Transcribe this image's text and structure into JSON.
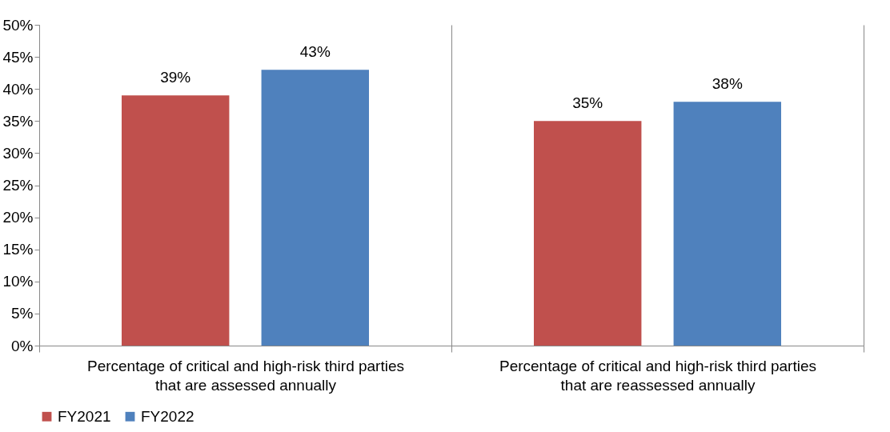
{
  "chart_data": {
    "type": "bar",
    "categories": [
      "Percentage of critical and high-risk third parties that are assessed annually",
      "Percentage of critical and high-risk third parties that are reassessed annually"
    ],
    "series": [
      {
        "name": "FY2021",
        "color": "#c0504d",
        "values": [
          39,
          35
        ],
        "value_labels": [
          "39%",
          "35%"
        ]
      },
      {
        "name": "FY2022",
        "color": "#4f81bd",
        "values": [
          43,
          38
        ],
        "value_labels": [
          "43%",
          "38%"
        ]
      }
    ],
    "ylim": [
      0,
      50
    ],
    "yticks": [
      {
        "value": 0,
        "label": "0%"
      },
      {
        "value": 5,
        "label": "5%"
      },
      {
        "value": 10,
        "label": "10%"
      },
      {
        "value": 15,
        "label": "15%"
      },
      {
        "value": 20,
        "label": "20%"
      },
      {
        "value": 25,
        "label": "25%"
      },
      {
        "value": 30,
        "label": "30%"
      },
      {
        "value": 35,
        "label": "35%"
      },
      {
        "value": 40,
        "label": "40%"
      },
      {
        "value": 45,
        "label": "45%"
      },
      {
        "value": 50,
        "label": "50%"
      }
    ],
    "legend": "bottom"
  }
}
